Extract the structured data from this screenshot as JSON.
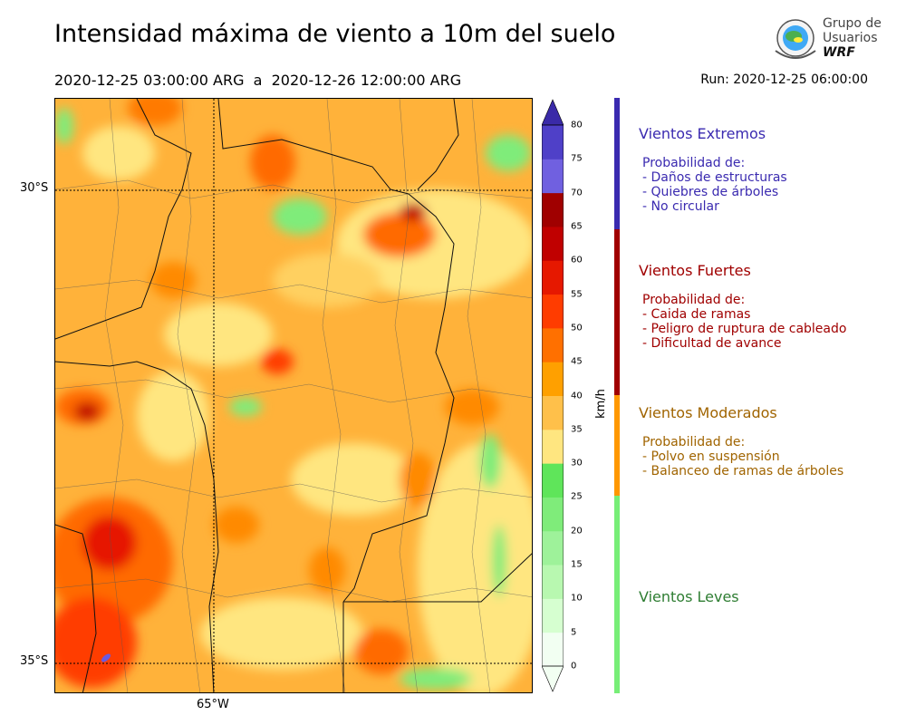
{
  "title": "Intensidad máxima de viento a 10m del suelo",
  "period": "2020-12-25 03:00:00 ARG  a  2020-12-26 12:00:00 ARG",
  "run": "Run: 2020-12-25 06:00:00",
  "logo": {
    "line1": "Grupo de",
    "line2": "Usuarios",
    "line3": "WRF"
  },
  "map": {
    "lat_labels": [
      "30°S",
      "35°S"
    ],
    "lon_labels": [
      "65°W"
    ]
  },
  "colorbar": {
    "unit": "km/h",
    "ticks": [
      "0",
      "5",
      "10",
      "15",
      "20",
      "25",
      "30",
      "35",
      "40",
      "45",
      "50",
      "55",
      "60",
      "65",
      "70",
      "75",
      "80"
    ],
    "colors": [
      "#f2fff2",
      "#d6ffd0",
      "#b8f8b0",
      "#9ef29a",
      "#7fec7a",
      "#5fe55a",
      "#ffe680",
      "#ffc04a",
      "#ffa000",
      "#ff7000",
      "#ff3c00",
      "#e61800",
      "#c00000",
      "#a00000",
      "#7060e0",
      "#4f40c8",
      "#3a2aa8"
    ]
  },
  "categories": [
    {
      "title": "Vientos Extremos",
      "color": "#3a2ab0",
      "lines": [
        "Probabilidad de:",
        "- Daños de estructuras",
        "- Quiebres de árboles",
        "- No circular"
      ]
    },
    {
      "title": "Vientos Fuertes",
      "color": "#a00000",
      "lines": [
        "Probabilidad de:",
        "- Caida de ramas",
        "- Peligro de ruptura de cableado",
        "- Dificultad de avance"
      ]
    },
    {
      "title": "Vientos Moderados",
      "color": "#a06400",
      "lines": [
        "Probabilidad de:",
        "- Polvo en suspensión",
        "- Balanceo de ramas de árboles"
      ]
    },
    {
      "title": "Vientos Leves",
      "color": "#2e7d32",
      "lines": []
    }
  ],
  "category_bar_colors": [
    "#3a2ab0",
    "#a00000",
    "#ff9800",
    "#77ee77"
  ]
}
